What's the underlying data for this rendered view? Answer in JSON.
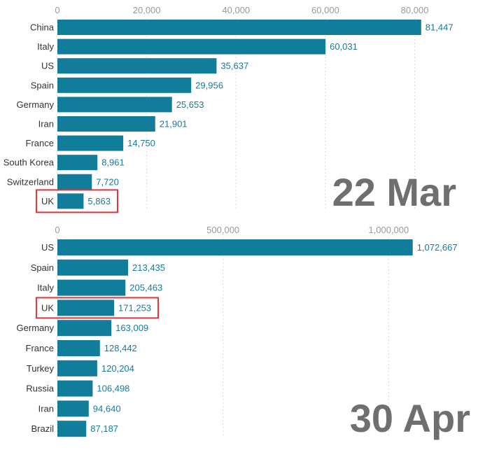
{
  "colors": {
    "bar": "#127d9a",
    "grid": "#d9d9d9",
    "highlight": "#d9363e",
    "value_text": "#1a7a9a",
    "stamp": "#6f6f6f"
  },
  "chart_data": [
    {
      "type": "bar",
      "orientation": "horizontal",
      "date_label": "22 Mar",
      "categories": [
        "China",
        "Italy",
        "US",
        "Spain",
        "Germany",
        "Iran",
        "France",
        "South Korea",
        "Switzerland",
        "UK"
      ],
      "values": [
        81447,
        60031,
        35637,
        29956,
        25653,
        21901,
        14750,
        8961,
        7720,
        5863
      ],
      "value_labels": [
        "81,447",
        "60,031",
        "35,637",
        "29,956",
        "25,653",
        "21,901",
        "14,750",
        "8,961",
        "7,720",
        "5,863"
      ],
      "ticks": [
        0,
        20000,
        40000,
        60000,
        80000
      ],
      "tick_labels": [
        "0",
        "20,000",
        "40,000",
        "60,000",
        "80,000"
      ],
      "xlim": [
        0,
        89000
      ],
      "highlight": "UK",
      "grid": true
    },
    {
      "type": "bar",
      "orientation": "horizontal",
      "date_label": "30 Apr",
      "categories": [
        "US",
        "Spain",
        "Italy",
        "UK",
        "Germany",
        "France",
        "Turkey",
        "Russia",
        "Iran",
        "Brazil"
      ],
      "values": [
        1072667,
        213435,
        205463,
        171253,
        163009,
        128442,
        120204,
        106498,
        94640,
        87187
      ],
      "value_labels": [
        "1,072,667",
        "213,435",
        "205,463",
        "171,253",
        "163,009",
        "128,442",
        "120,204",
        "106,498",
        "94,640",
        "87,187"
      ],
      "ticks": [
        0,
        500000,
        1000000
      ],
      "tick_labels": [
        "0",
        "500,000",
        "1,000,000"
      ],
      "xlim": [
        0,
        1200000
      ],
      "highlight": "UK",
      "grid": true
    }
  ]
}
